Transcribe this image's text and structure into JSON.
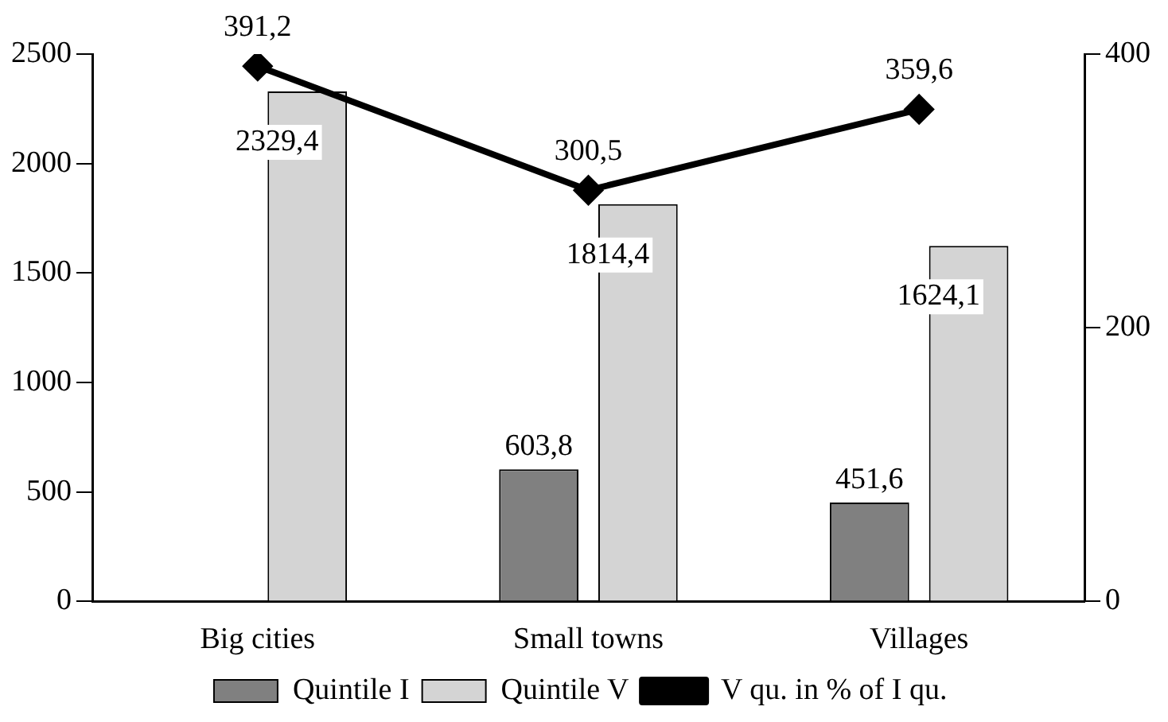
{
  "chart_data": {
    "type": "bar",
    "categories": [
      "Big cities",
      "Small towns",
      "Villages"
    ],
    "series": [
      {
        "name": "Quintile I",
        "color": "#808080",
        "values": [
          null,
          603.8,
          451.6
        ],
        "value_labels": [
          null,
          "603,8",
          "451,6"
        ]
      },
      {
        "name": "Quintile V",
        "color": "#d4d4d4",
        "values": [
          2329.4,
          1814.4,
          1624.1
        ],
        "value_labels": [
          "2329,4",
          "1814,4",
          "1624,1"
        ]
      },
      {
        "name": "V qu. in % of I qu.",
        "type": "line",
        "axis": "y2",
        "color": "#000000",
        "values": [
          391.2,
          300.5,
          359.6
        ],
        "marker": "diamond",
        "value_labels": [
          "391,2",
          "300,5",
          "359,6"
        ]
      }
    ],
    "ylim": [
      0,
      2500
    ],
    "yticks": [
      0,
      500,
      1000,
      1500,
      2000,
      2500
    ],
    "y2lim": [
      0,
      400
    ],
    "y2ticks": [
      0,
      200,
      400
    ],
    "grid": false,
    "legend": "bottom"
  }
}
